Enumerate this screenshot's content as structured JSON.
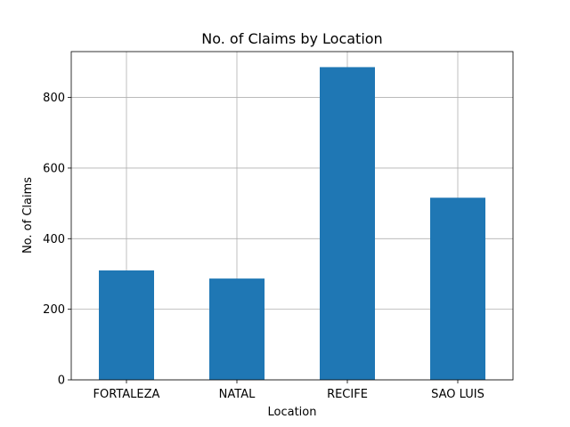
{
  "chart_data": {
    "type": "bar",
    "title": "No. of Claims by Location",
    "xlabel": "Location",
    "ylabel": "No. of Claims",
    "categories": [
      "FORTALEZA",
      "NATAL",
      "RECIFE",
      "SAO LUIS"
    ],
    "values": [
      310,
      287,
      886,
      516
    ],
    "ylim": [
      0,
      930
    ],
    "yticks": [
      0,
      200,
      400,
      600,
      800
    ],
    "grid": true,
    "bar_color": "#1f77b4"
  }
}
